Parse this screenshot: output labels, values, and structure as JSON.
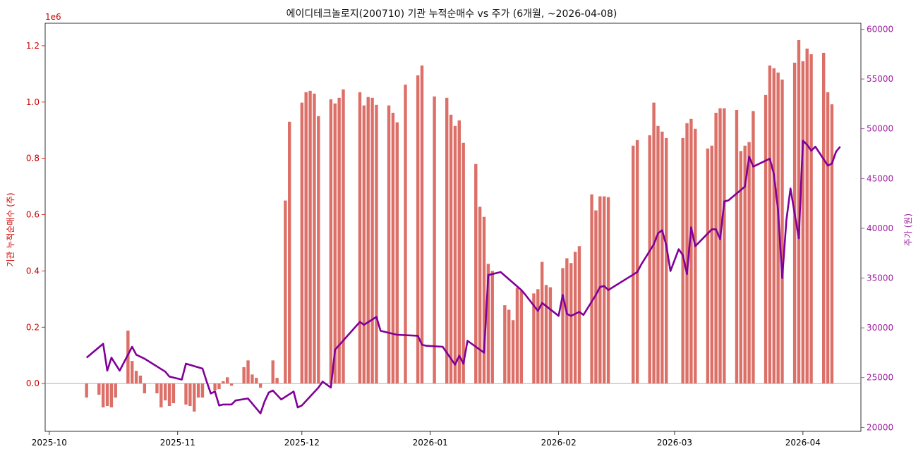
{
  "chart_data": {
    "type": "bar+line",
    "title": "에이디테크놀로지(200710) 기관 누적순매수 vs 주가 (6개월, ~2026-04-08)",
    "y_left_label": "기관 누적순매수 (주)",
    "y_right_label": "주가 (원)",
    "y_left_offset_text": "1e6",
    "y_left_range": [
      -0.17,
      1.28
    ],
    "y_right_range": [
      19600,
      60600
    ],
    "x_range": [
      "2025-09-30",
      "2026-04-15"
    ],
    "x_ticks": [
      "2025-10",
      "2025-11",
      "2025-12",
      "2026-01",
      "2026-02",
      "2026-03",
      "2026-04"
    ],
    "y_left_ticks": [
      "0.0",
      "0.2",
      "0.4",
      "0.6",
      "0.8",
      "1.0",
      "1.2"
    ],
    "y_right_ticks": [
      "20000",
      "25000",
      "30000",
      "35000",
      "40000",
      "45000",
      "50000",
      "55000",
      "60000"
    ],
    "colors": {
      "bar": "#dc7068",
      "line": "#800098",
      "left_axis": "#cc0000",
      "right_axis": "#a020a0",
      "zero_line": "#999999"
    },
    "bars": {
      "name": "기관 누적순매수",
      "x": [
        "2025-10-10",
        "2025-10-13",
        "2025-10-14",
        "2025-10-15",
        "2025-10-16",
        "2025-10-17",
        "2025-10-20",
        "2025-10-21",
        "2025-10-22",
        "2025-10-23",
        "2025-10-24",
        "2025-10-27",
        "2025-10-28",
        "2025-10-29",
        "2025-10-30",
        "2025-10-31",
        "2025-11-03",
        "2025-11-04",
        "2025-11-05",
        "2025-11-06",
        "2025-11-07",
        "2025-11-10",
        "2025-11-11",
        "2025-11-12",
        "2025-11-13",
        "2025-11-14",
        "2025-11-17",
        "2025-11-18",
        "2025-11-19",
        "2025-11-20",
        "2025-11-21",
        "2025-11-24",
        "2025-11-25",
        "2025-11-26",
        "2025-11-27",
        "2025-11-28",
        "2025-12-01",
        "2025-12-02",
        "2025-12-03",
        "2025-12-04",
        "2025-12-05",
        "2025-12-08",
        "2025-12-09",
        "2025-12-10",
        "2025-12-11",
        "2025-12-15",
        "2025-12-16",
        "2025-12-17",
        "2025-12-18",
        "2025-12-19",
        "2025-12-22",
        "2025-12-23",
        "2025-12-24",
        "2025-12-26",
        "2025-12-29",
        "2025-12-30",
        "2026-01-02",
        "2026-01-05",
        "2026-01-06",
        "2026-01-07",
        "2026-01-08",
        "2026-01-09",
        "2026-01-12",
        "2026-01-13",
        "2026-01-14",
        "2026-01-15",
        "2026-01-16",
        "2026-01-19",
        "2026-01-20",
        "2026-01-21",
        "2026-01-22",
        "2026-01-23",
        "2026-01-26",
        "2026-01-27",
        "2026-01-28",
        "2026-01-29",
        "2026-01-30",
        "2026-02-02",
        "2026-02-03",
        "2026-02-04",
        "2026-02-05",
        "2026-02-06",
        "2026-02-09",
        "2026-02-10",
        "2026-02-11",
        "2026-02-12",
        "2026-02-13",
        "2026-02-19",
        "2026-02-20",
        "2026-02-23",
        "2026-02-24",
        "2026-02-25",
        "2026-02-26",
        "2026-02-27",
        "2026-03-03",
        "2026-03-04",
        "2026-03-05",
        "2026-03-06",
        "2026-03-09",
        "2026-03-10",
        "2026-03-11",
        "2026-03-12",
        "2026-03-13",
        "2026-03-16",
        "2026-03-17",
        "2026-03-18",
        "2026-03-19",
        "2026-03-20",
        "2026-03-23",
        "2026-03-24",
        "2026-03-25",
        "2026-03-26",
        "2026-03-27",
        "2026-03-30",
        "2026-03-31",
        "2026-04-01",
        "2026-04-02",
        "2026-04-03",
        "2026-04-06",
        "2026-04-07",
        "2026-04-08"
      ],
      "values": [
        -0.05,
        -0.04,
        -0.085,
        -0.08,
        -0.085,
        -0.05,
        0.188,
        0.08,
        0.045,
        0.028,
        -0.035,
        -0.035,
        -0.085,
        -0.06,
        -0.08,
        -0.07,
        -0.075,
        -0.08,
        -0.1,
        -0.05,
        -0.05,
        -0.025,
        -0.02,
        0.008,
        0.022,
        -0.008,
        0.058,
        0.082,
        0.032,
        0.02,
        -0.015,
        0.082,
        0.02,
        0.0,
        0.65,
        0.93,
        0.998,
        1.035,
        1.04,
        1.03,
        0.95,
        1.01,
        0.995,
        1.015,
        1.045,
        1.035,
        0.988,
        1.018,
        1.015,
        0.99,
        0.988,
        0.962,
        0.928,
        1.062,
        1.095,
        1.13,
        1.02,
        1.015,
        0.955,
        0.915,
        0.935,
        0.855,
        0.78,
        0.628,
        0.592,
        0.425,
        0.4,
        0.278,
        0.262,
        0.225,
        0.34,
        0.33,
        0.32,
        0.335,
        0.432,
        0.35,
        0.342,
        0.41,
        0.445,
        0.428,
        0.468,
        0.488,
        0.672,
        0.615,
        0.665,
        0.665,
        0.662,
        0.845,
        0.865,
        0.882,
        0.998,
        0.915,
        0.895,
        0.872,
        0.872,
        0.925,
        0.94,
        0.905,
        0.835,
        0.845,
        0.962,
        0.978,
        0.978,
        0.972,
        0.826,
        0.845,
        0.858,
        0.968,
        1.025,
        1.13,
        1.12,
        1.105,
        1.08,
        1.14,
        1.22,
        1.145,
        1.19,
        1.17,
        1.175,
        1.035,
        0.992
      ]
    },
    "line": {
      "name": "주가",
      "x": [
        "2025-10-10",
        "2025-10-14",
        "2025-10-15",
        "2025-10-16",
        "2025-10-18",
        "2025-10-21",
        "2025-10-22",
        "2025-10-24",
        "2025-10-29",
        "2025-10-30",
        "2025-11-02",
        "2025-11-03",
        "2025-11-07",
        "2025-11-08",
        "2025-11-09",
        "2025-11-10",
        "2025-11-11",
        "2025-11-12",
        "2025-11-14",
        "2025-11-15",
        "2025-11-18",
        "2025-11-21",
        "2025-11-22",
        "2025-11-23",
        "2025-11-24",
        "2025-11-26",
        "2025-11-29",
        "2025-11-30",
        "2025-12-01",
        "2025-12-05",
        "2025-12-06",
        "2025-12-08",
        "2025-12-09",
        "2025-12-15",
        "2025-12-16",
        "2025-12-19",
        "2025-12-20",
        "2025-12-23",
        "2025-12-24",
        "2025-12-29",
        "2025-12-30",
        "2025-12-31",
        "2026-01-04",
        "2026-01-07",
        "2026-01-08",
        "2026-01-09",
        "2026-01-10",
        "2026-01-14",
        "2026-01-15",
        "2026-01-18",
        "2026-01-23",
        "2026-01-24",
        "2026-01-27",
        "2026-01-28",
        "2026-02-01",
        "2026-02-02",
        "2026-02-03",
        "2026-02-04",
        "2026-02-06",
        "2026-02-07",
        "2026-02-10",
        "2026-02-11",
        "2026-02-12",
        "2026-02-13",
        "2026-02-20",
        "2026-02-21",
        "2026-02-24",
        "2026-02-25",
        "2026-02-26",
        "2026-02-27",
        "2026-02-28",
        "2026-03-02",
        "2026-03-03",
        "2026-03-04",
        "2026-03-05",
        "2026-03-06",
        "2026-03-10",
        "2026-03-11",
        "2026-03-12",
        "2026-03-13",
        "2026-03-14",
        "2026-03-18",
        "2026-03-19",
        "2026-03-20",
        "2026-03-24",
        "2026-03-25",
        "2026-03-26",
        "2026-03-27",
        "2026-03-28",
        "2026-03-29",
        "2026-03-31",
        "2026-04-01",
        "2026-04-02",
        "2026-04-03",
        "2026-04-04",
        "2026-04-07",
        "2026-04-08",
        "2026-04-09",
        "2026-04-10"
      ],
      "values": [
        27000,
        28400,
        25700,
        27000,
        25700,
        28100,
        27300,
        26900,
        25600,
        25100,
        24800,
        26400,
        25900,
        24600,
        23400,
        23600,
        22200,
        22300,
        22300,
        22700,
        22900,
        21400,
        22600,
        23500,
        23700,
        22800,
        23600,
        22000,
        22200,
        24000,
        24600,
        24000,
        27800,
        30600,
        30300,
        31100,
        29700,
        29400,
        29300,
        29200,
        28300,
        28200,
        28100,
        26300,
        27200,
        26400,
        28700,
        27500,
        35300,
        35600,
        33800,
        33300,
        31700,
        32500,
        31200,
        33300,
        31400,
        31200,
        31600,
        31300,
        33300,
        34100,
        34200,
        33800,
        35600,
        36400,
        38400,
        39500,
        39800,
        38300,
        35700,
        37900,
        37300,
        35400,
        40100,
        38200,
        39900,
        39900,
        38900,
        42700,
        42800,
        44200,
        47200,
        46200,
        47000,
        45400,
        41800,
        35000,
        40800,
        44000,
        39000,
        48800,
        48400,
        47800,
        48200,
        46300,
        46500,
        47700,
        48200
      ]
    }
  }
}
